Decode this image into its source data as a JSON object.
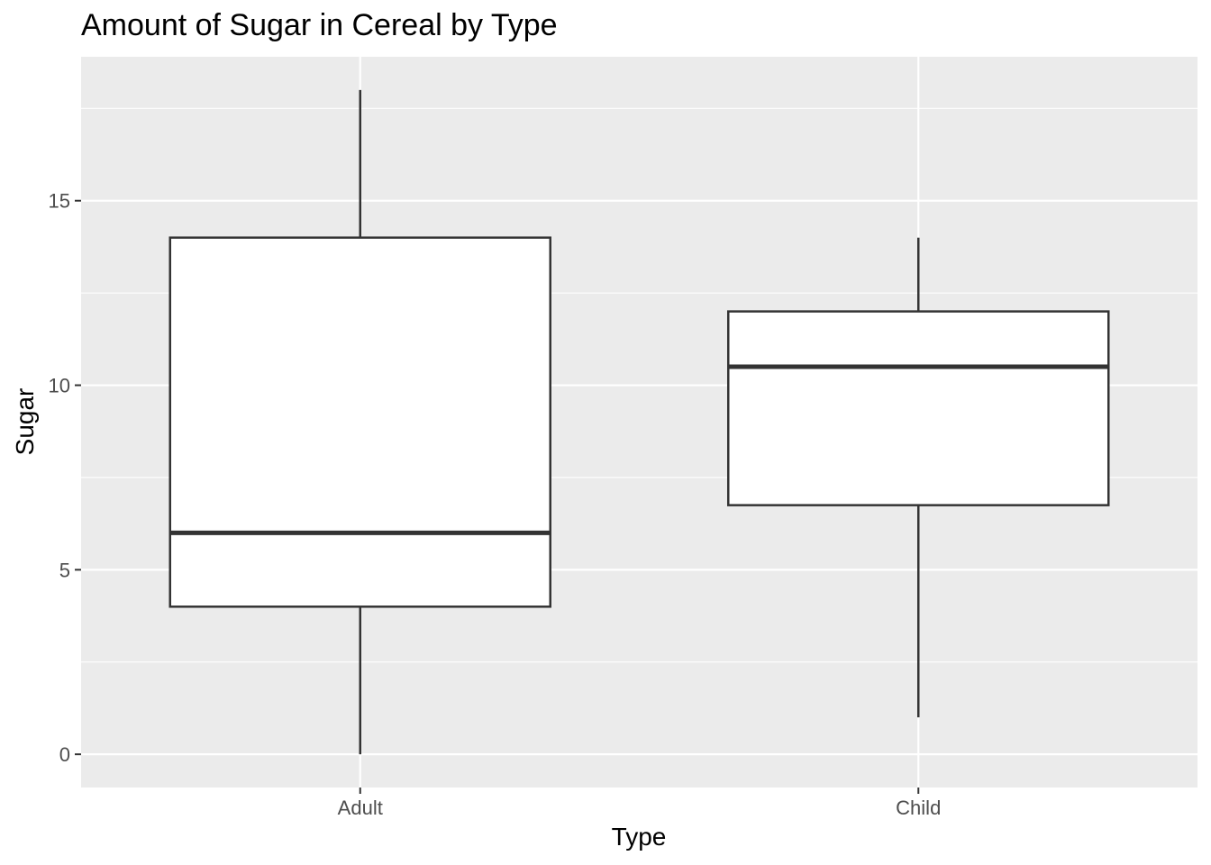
{
  "chart_data": {
    "type": "boxplot",
    "title": "Amount of Sugar in Cereal by Type",
    "xlabel": "Type",
    "ylabel": "Sugar",
    "categories": [
      "Adult",
      "Child"
    ],
    "boxes": [
      {
        "category": "Adult",
        "min": 0,
        "q1": 4,
        "median": 6,
        "q3": 14,
        "max": 18
      },
      {
        "category": "Child",
        "min": 1,
        "q1": 6.75,
        "median": 10.5,
        "q3": 12,
        "max": 14
      }
    ],
    "ylim": [
      -0.9,
      18.9
    ],
    "yticks": [
      0,
      5,
      10,
      15
    ],
    "grid": true,
    "legend": "none",
    "colors": {
      "panel": "#ebebeb",
      "box_fill": "#ffffff",
      "box_line": "#333333"
    }
  }
}
